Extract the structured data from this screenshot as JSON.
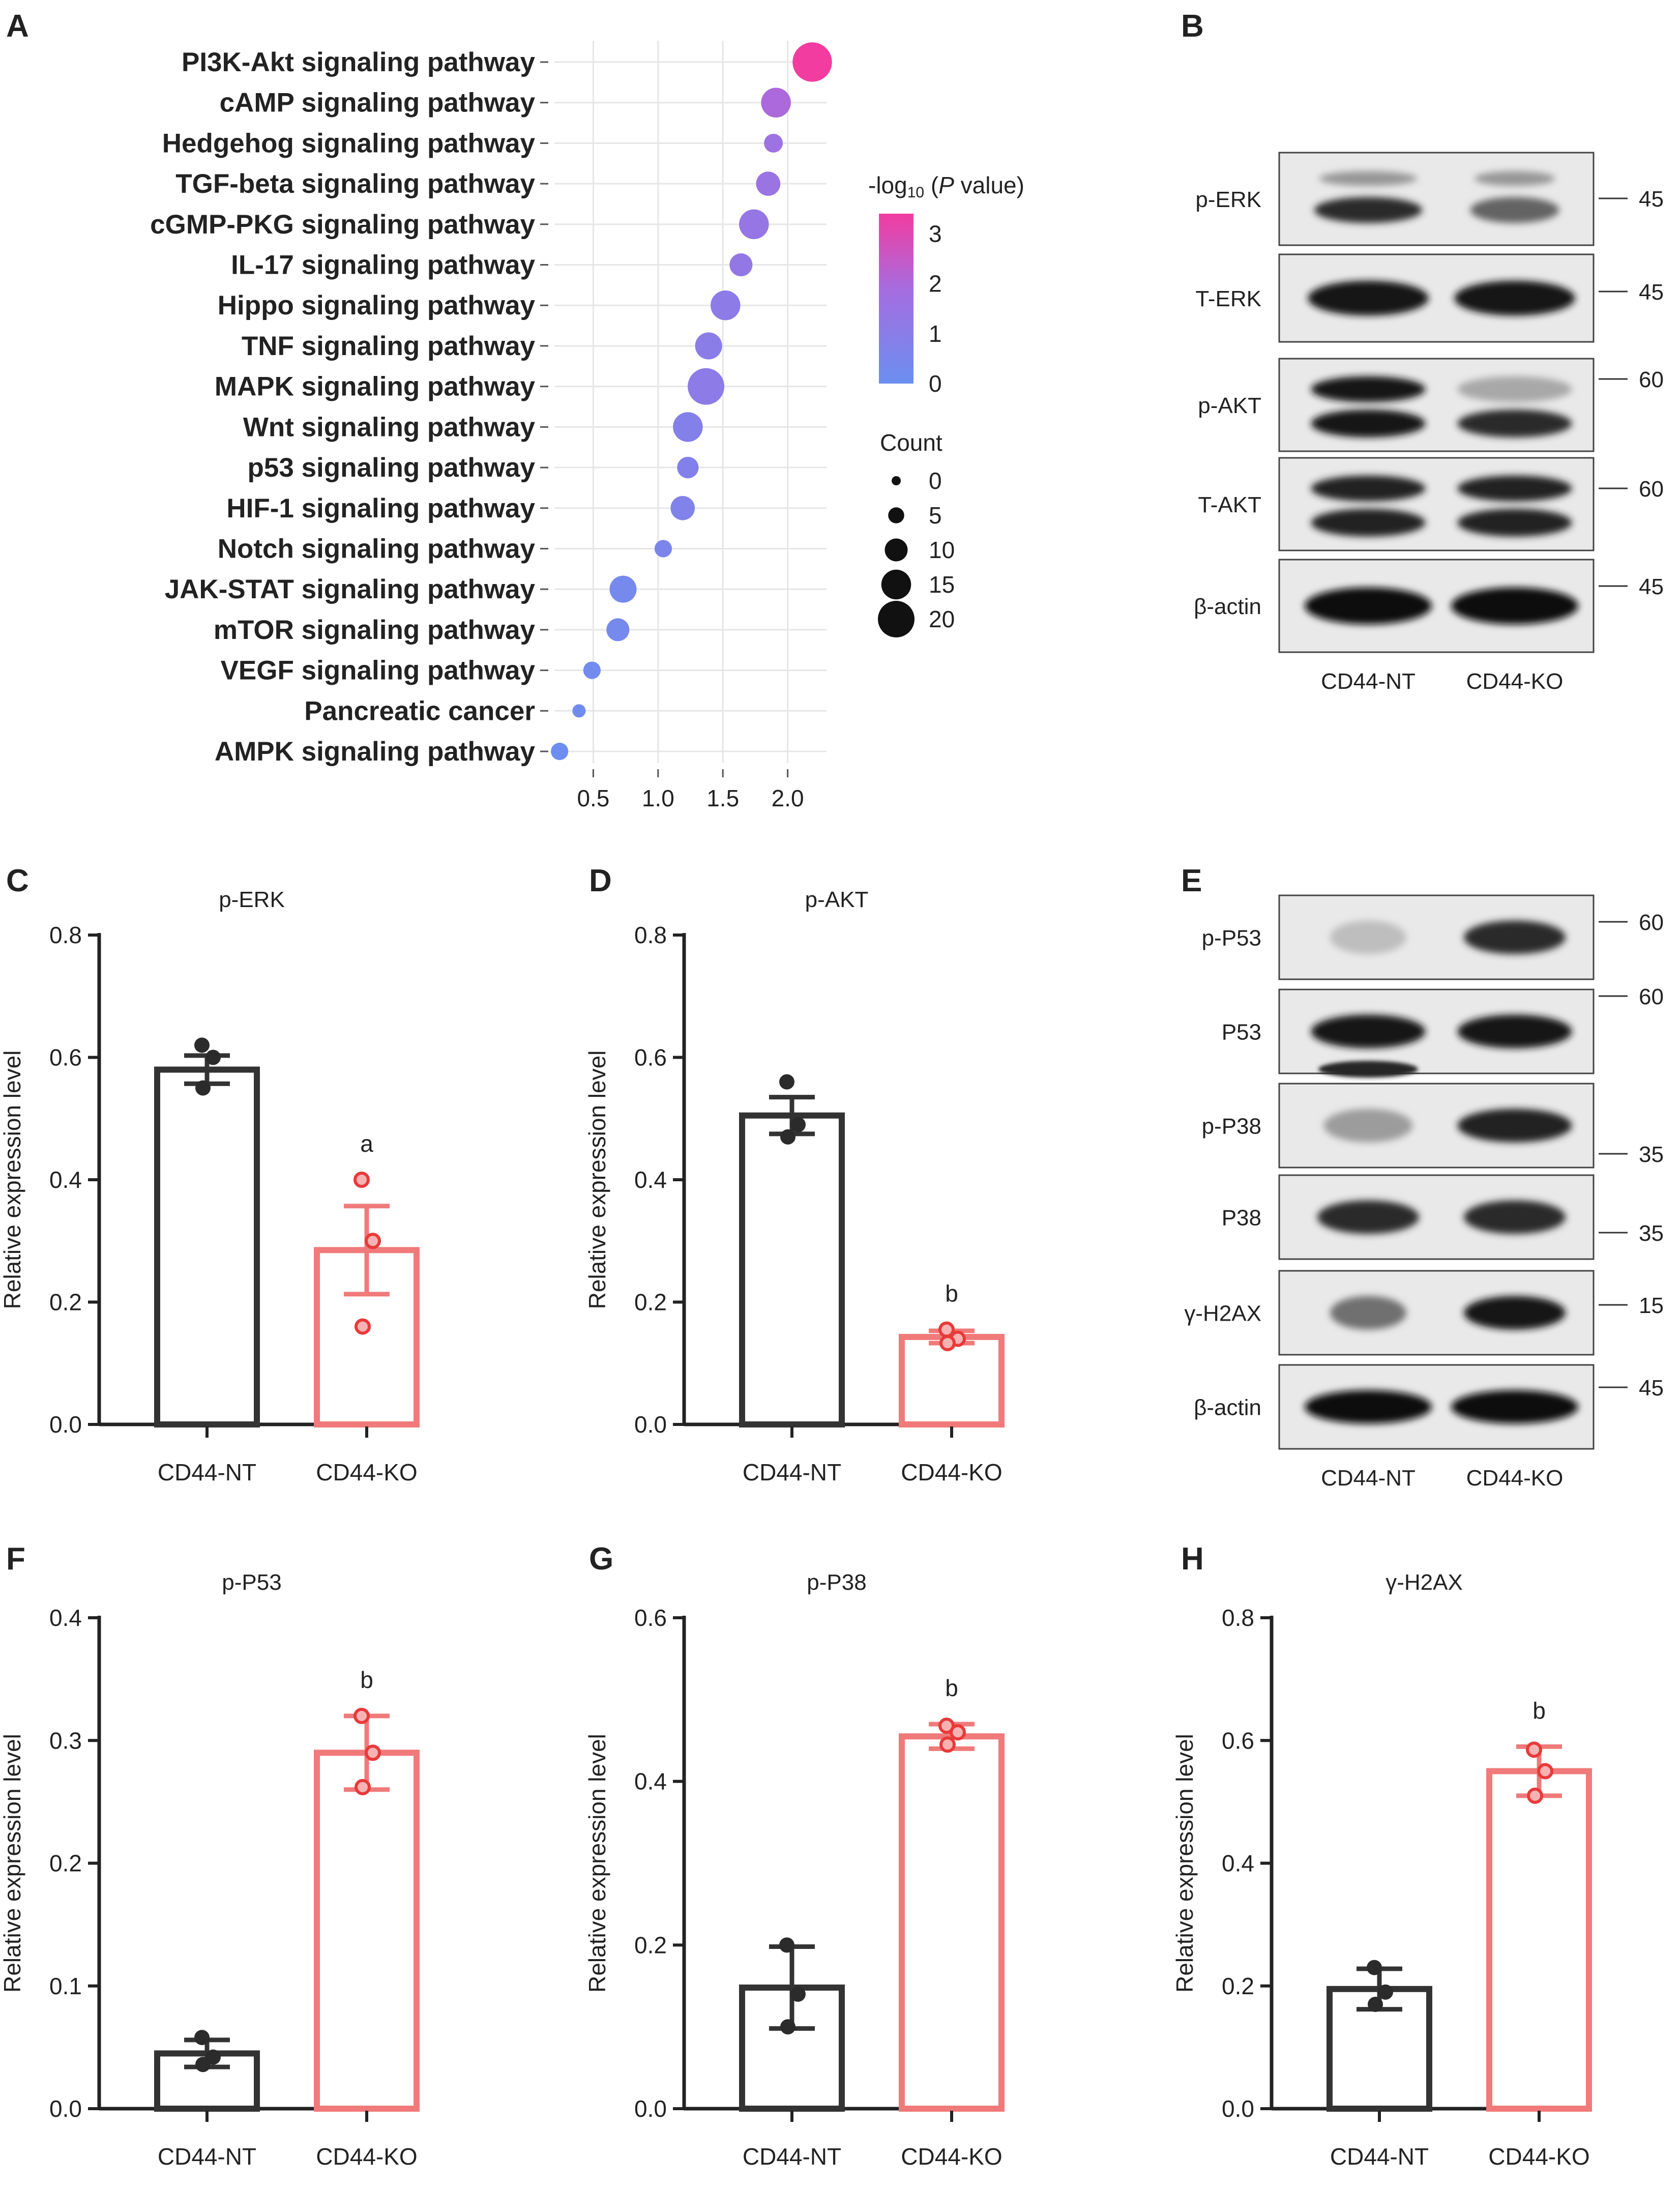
{
  "panels": {
    "A": "A",
    "B": "B",
    "C": "C",
    "D": "D",
    "E": "E",
    "F": "F",
    "G": "G",
    "H": "H"
  },
  "chart_data": [
    {
      "id": "A",
      "type": "scatter",
      "title": "",
      "xlabel": "",
      "ylabel": "",
      "xlim": [
        0.2,
        2.3
      ],
      "xticks": [
        "0.5",
        "1.0",
        "1.5",
        "2.0"
      ],
      "xtick_values": [
        0.5,
        1.0,
        1.5,
        2.0
      ],
      "colorbar": {
        "title_prefix": "-log",
        "title_sub": "10",
        "title_mid": " (",
        "title_italic": "P",
        "title_suffix": " value)",
        "ticks": [
          "3",
          "2",
          "1",
          "0"
        ],
        "tick_values": [
          3,
          2,
          1,
          0
        ],
        "range": [
          0,
          3.4
        ],
        "color_low": "#6b8ff0",
        "color_mid": "#a56de0",
        "color_high": "#f23ca0"
      },
      "size_legend": {
        "title": "Count",
        "labels": [
          "0",
          "5",
          "10",
          "15",
          "20"
        ],
        "values": [
          0,
          5,
          10,
          15,
          20
        ]
      },
      "points": [
        {
          "label": "PI3K-Akt signaling pathway",
          "x": 2.19,
          "count": 22,
          "logp": 3.4
        },
        {
          "label": "cAMP signaling pathway",
          "x": 1.91,
          "count": 15,
          "logp": 2.0
        },
        {
          "label": "Hedgehog signaling pathway",
          "x": 1.89,
          "count": 7,
          "logp": 1.6
        },
        {
          "label": "TGF-beta signaling pathway",
          "x": 1.85,
          "count": 11,
          "logp": 1.5
        },
        {
          "label": "cGMP-PKG signaling pathway",
          "x": 1.74,
          "count": 15,
          "logp": 1.4
        },
        {
          "label": "IL-17 signaling pathway",
          "x": 1.64,
          "count": 10,
          "logp": 1.3
        },
        {
          "label": "Hippo signaling pathway",
          "x": 1.52,
          "count": 15,
          "logp": 1.1
        },
        {
          "label": "TNF signaling pathway",
          "x": 1.39,
          "count": 13,
          "logp": 1.0
        },
        {
          "label": "MAPK signaling pathway",
          "x": 1.37,
          "count": 20,
          "logp": 1.1
        },
        {
          "label": "Wnt signaling pathway",
          "x": 1.23,
          "count": 15,
          "logp": 0.8
        },
        {
          "label": "p53 signaling pathway",
          "x": 1.23,
          "count": 9,
          "logp": 0.75
        },
        {
          "label": "HIF-1 signaling pathway",
          "x": 1.19,
          "count": 11,
          "logp": 0.7
        },
        {
          "label": "Notch signaling pathway",
          "x": 1.04,
          "count": 6,
          "logp": 0.55
        },
        {
          "label": "JAK-STAT signaling pathway",
          "x": 0.73,
          "count": 13,
          "logp": 0.35
        },
        {
          "label": "mTOR signaling pathway",
          "x": 0.69,
          "count": 10,
          "logp": 0.35
        },
        {
          "label": "VEGF signaling pathway",
          "x": 0.49,
          "count": 6,
          "logp": 0.2
        },
        {
          "label": "Pancreatic cancer",
          "x": 0.39,
          "count": 3,
          "logp": 0.15
        },
        {
          "label": "AMPK signaling pathway",
          "x": 0.24,
          "count": 6,
          "logp": 0.05
        }
      ]
    },
    {
      "id": "C",
      "type": "bar",
      "title": "p-ERK",
      "ylabel": "Relative expression level",
      "ylim": [
        0,
        0.8
      ],
      "yticks": [
        "0.0",
        "0.2",
        "0.4",
        "0.6",
        "0.8"
      ],
      "ytick_values": [
        0,
        0.2,
        0.4,
        0.6,
        0.8
      ],
      "categories": [
        "CD44-NT",
        "CD44-KO"
      ],
      "values": [
        0.58,
        0.285
      ],
      "errors": [
        0.023,
        0.072
      ],
      "points": [
        [
          0.62,
          0.6,
          0.55
        ],
        [
          0.4,
          0.3,
          0.16
        ]
      ],
      "annotations": [
        "",
        "a"
      ]
    },
    {
      "id": "D",
      "type": "bar",
      "title": "p-AKT",
      "ylabel": "Relative expression level",
      "ylim": [
        0,
        0.8
      ],
      "yticks": [
        "0.0",
        "0.2",
        "0.4",
        "0.6",
        "0.8"
      ],
      "ytick_values": [
        0,
        0.2,
        0.4,
        0.6,
        0.8
      ],
      "categories": [
        "CD44-NT",
        "CD44-KO"
      ],
      "values": [
        0.505,
        0.143
      ],
      "errors": [
        0.03,
        0.01
      ],
      "points": [
        [
          0.56,
          0.49,
          0.47
        ],
        [
          0.155,
          0.14,
          0.133
        ]
      ],
      "annotations": [
        "",
        "b"
      ]
    },
    {
      "id": "F",
      "type": "bar",
      "title": "p-P53",
      "ylabel": "Relative expression level",
      "ylim": [
        0,
        0.4
      ],
      "yticks": [
        "0.0",
        "0.1",
        "0.2",
        "0.3",
        "0.4"
      ],
      "ytick_values": [
        0,
        0.1,
        0.2,
        0.3,
        0.4
      ],
      "categories": [
        "CD44-NT",
        "CD44-KO"
      ],
      "values": [
        0.045,
        0.29
      ],
      "errors": [
        0.011,
        0.03
      ],
      "points": [
        [
          0.058,
          0.042,
          0.036
        ],
        [
          0.32,
          0.29,
          0.262
        ]
      ],
      "annotations": [
        "",
        "b"
      ]
    },
    {
      "id": "G",
      "type": "bar",
      "title": "p-P38",
      "ylabel": "Relative expression level",
      "ylim": [
        0,
        0.6
      ],
      "yticks": [
        "0.0",
        "0.2",
        "0.4",
        "0.6"
      ],
      "ytick_values": [
        0,
        0.2,
        0.4,
        0.6
      ],
      "categories": [
        "CD44-NT",
        "CD44-KO"
      ],
      "values": [
        0.148,
        0.455
      ],
      "errors": [
        0.05,
        0.015
      ],
      "points": [
        [
          0.2,
          0.14,
          0.1
        ],
        [
          0.468,
          0.46,
          0.445
        ]
      ],
      "annotations": [
        "",
        "b"
      ]
    },
    {
      "id": "H",
      "type": "bar",
      "title": "γ-H2AX",
      "ylabel": "Relative expression level",
      "ylim": [
        0,
        0.8
      ],
      "yticks": [
        "0.0",
        "0.2",
        "0.4",
        "0.6",
        "0.8"
      ],
      "ytick_values": [
        0,
        0.2,
        0.4,
        0.6,
        0.8
      ],
      "categories": [
        "CD44-NT",
        "CD44-KO"
      ],
      "values": [
        0.195,
        0.55
      ],
      "errors": [
        0.033,
        0.04
      ],
      "points": [
        [
          0.23,
          0.19,
          0.17
        ],
        [
          0.585,
          0.55,
          0.51
        ]
      ],
      "annotations": [
        "",
        "b"
      ]
    }
  ],
  "blots": [
    {
      "id": "B",
      "columns": [
        "CD44-NT",
        "CD44-KO"
      ],
      "rows": [
        {
          "label": "p-ERK",
          "marker": "45",
          "bands": [
            0.85,
            0.7
          ],
          "intensity": [
            0.85,
            0.6
          ],
          "extra": "doublet-faint"
        },
        {
          "label": "T-ERK",
          "marker": "45",
          "bands": [
            0.95,
            0.95
          ],
          "intensity": [
            0.95,
            0.95
          ],
          "extra": ""
        },
        {
          "label": "p-AKT",
          "marker": "60",
          "bands": [
            0.9,
            0.9
          ],
          "intensity": [
            0.95,
            0.3
          ],
          "extra": "doublet"
        },
        {
          "label": "T-AKT",
          "marker": "60",
          "bands": [
            0.9,
            0.9
          ],
          "intensity": [
            0.9,
            0.9
          ],
          "extra": "doublet"
        },
        {
          "label": "β-actin",
          "marker": "45",
          "bands": [
            1,
            1
          ],
          "intensity": [
            1,
            1
          ],
          "extra": ""
        }
      ]
    },
    {
      "id": "E",
      "columns": [
        "CD44-NT",
        "CD44-KO"
      ],
      "rows": [
        {
          "label": "p-P53",
          "marker": "60",
          "bands": [
            0.6,
            0.8
          ],
          "intensity": [
            0.2,
            0.85
          ],
          "extra": ""
        },
        {
          "label": "P53",
          "marker": "60",
          "bands": [
            0.9,
            0.9
          ],
          "intensity": [
            0.95,
            0.95
          ],
          "extra": "lower-lane1"
        },
        {
          "label": "p-P38",
          "marker": "35",
          "bands": [
            0.7,
            0.9
          ],
          "intensity": [
            0.35,
            0.9
          ],
          "extra": ""
        },
        {
          "label": "P38",
          "marker": "35",
          "bands": [
            0.8,
            0.8
          ],
          "intensity": [
            0.85,
            0.85
          ],
          "extra": ""
        },
        {
          "label": "γ-H2AX",
          "marker": "15",
          "bands": [
            0.6,
            0.8
          ],
          "intensity": [
            0.55,
            0.95
          ],
          "extra": ""
        },
        {
          "label": "β-actin",
          "marker": "45",
          "bands": [
            1,
            1
          ],
          "intensity": [
            1,
            1
          ],
          "extra": ""
        }
      ]
    }
  ]
}
